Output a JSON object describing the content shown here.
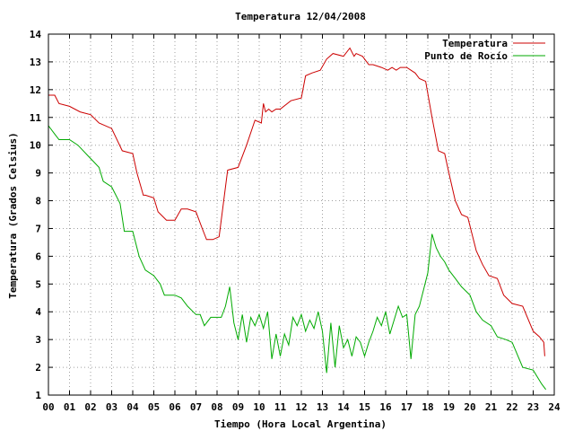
{
  "chart_data": {
    "type": "line",
    "title": "Temperatura 12/04/2008",
    "xlabel": "Tiempo (Hora Local Argentina)",
    "ylabel": "Temperatura (Grados Celsius)",
    "xlim": [
      0,
      24
    ],
    "ylim": [
      1,
      14
    ],
    "x_ticks": [
      {
        "v": 0,
        "label": "00"
      },
      {
        "v": 1,
        "label": "01"
      },
      {
        "v": 2,
        "label": "02"
      },
      {
        "v": 3,
        "label": "03"
      },
      {
        "v": 4,
        "label": "04"
      },
      {
        "v": 5,
        "label": "05"
      },
      {
        "v": 6,
        "label": "06"
      },
      {
        "v": 7,
        "label": "07"
      },
      {
        "v": 8,
        "label": "08"
      },
      {
        "v": 9,
        "label": "09"
      },
      {
        "v": 10,
        "label": "10"
      },
      {
        "v": 11,
        "label": "11"
      },
      {
        "v": 12,
        "label": "12"
      },
      {
        "v": 13,
        "label": "13"
      },
      {
        "v": 14,
        "label": "14"
      },
      {
        "v": 15,
        "label": "15"
      },
      {
        "v": 16,
        "label": "16"
      },
      {
        "v": 17,
        "label": "17"
      },
      {
        "v": 18,
        "label": "18"
      },
      {
        "v": 19,
        "label": "19"
      },
      {
        "v": 20,
        "label": "20"
      },
      {
        "v": 21,
        "label": "21"
      },
      {
        "v": 22,
        "label": "22"
      },
      {
        "v": 23,
        "label": "23"
      },
      {
        "v": 24,
        "label": "24"
      }
    ],
    "y_ticks": [
      {
        "v": 1,
        "label": "1"
      },
      {
        "v": 2,
        "label": "2"
      },
      {
        "v": 3,
        "label": "3"
      },
      {
        "v": 4,
        "label": "4"
      },
      {
        "v": 5,
        "label": "5"
      },
      {
        "v": 6,
        "label": "6"
      },
      {
        "v": 7,
        "label": "7"
      },
      {
        "v": 8,
        "label": "8"
      },
      {
        "v": 9,
        "label": "9"
      },
      {
        "v": 10,
        "label": "10"
      },
      {
        "v": 11,
        "label": "11"
      },
      {
        "v": 12,
        "label": "12"
      },
      {
        "v": 13,
        "label": "13"
      },
      {
        "v": 14,
        "label": "14"
      }
    ],
    "grid": true,
    "legend": "top-right",
    "series": [
      {
        "name": "Temperatura",
        "color": "#cc0000",
        "x": [
          0.0,
          0.3,
          0.5,
          1.0,
          1.5,
          2.0,
          2.4,
          3.0,
          3.5,
          4.0,
          4.2,
          4.5,
          4.6,
          5.0,
          5.2,
          5.6,
          6.0,
          6.3,
          6.6,
          7.0,
          7.3,
          7.5,
          7.8,
          8.1,
          8.5,
          9.0,
          9.4,
          9.8,
          10.1,
          10.2,
          10.3,
          10.45,
          10.6,
          10.8,
          11.0,
          11.5,
          12.0,
          12.2,
          12.5,
          12.9,
          13.2,
          13.5,
          14.0,
          14.3,
          14.5,
          14.6,
          14.9,
          15.2,
          15.4,
          15.8,
          16.1,
          16.3,
          16.5,
          16.7,
          17.0,
          17.4,
          17.6,
          17.9,
          18.2,
          18.5,
          18.8,
          19.0,
          19.3,
          19.6,
          19.9,
          20.3,
          20.6,
          20.9,
          21.3,
          21.6,
          22.0,
          22.5,
          23.0,
          23.3,
          23.5,
          23.55
        ],
        "values": [
          11.8,
          11.8,
          11.5,
          11.4,
          11.2,
          11.1,
          10.8,
          10.6,
          9.8,
          9.7,
          9.0,
          8.2,
          8.2,
          8.1,
          7.6,
          7.3,
          7.3,
          7.7,
          7.7,
          7.6,
          7.0,
          6.6,
          6.6,
          6.7,
          9.1,
          9.2,
          10.0,
          10.9,
          10.8,
          11.5,
          11.2,
          11.3,
          11.2,
          11.3,
          11.3,
          11.6,
          11.7,
          12.5,
          12.6,
          12.7,
          13.1,
          13.3,
          13.2,
          13.5,
          13.2,
          13.3,
          13.2,
          12.9,
          12.9,
          12.8,
          12.7,
          12.8,
          12.7,
          12.8,
          12.8,
          12.6,
          12.4,
          12.3,
          11.0,
          9.8,
          9.7,
          9.0,
          8.0,
          7.5,
          7.4,
          6.2,
          5.7,
          5.3,
          5.2,
          4.6,
          4.3,
          4.2,
          3.3,
          3.1,
          2.9,
          2.4
        ]
      },
      {
        "name": "Punto de Rocío",
        "color": "#00aa00",
        "x": [
          0.0,
          0.3,
          0.5,
          1.0,
          1.4,
          1.9,
          2.4,
          2.6,
          3.0,
          3.4,
          3.6,
          4.0,
          4.3,
          4.6,
          5.0,
          5.3,
          5.5,
          6.0,
          6.3,
          6.6,
          7.0,
          7.2,
          7.4,
          7.7,
          8.0,
          8.2,
          8.4,
          8.6,
          8.8,
          9.0,
          9.2,
          9.4,
          9.6,
          9.8,
          10.0,
          10.2,
          10.4,
          10.6,
          10.8,
          11.0,
          11.2,
          11.4,
          11.6,
          11.8,
          12.0,
          12.2,
          12.4,
          12.6,
          12.8,
          13.0,
          13.2,
          13.4,
          13.6,
          13.8,
          14.0,
          14.2,
          14.4,
          14.6,
          14.8,
          15.0,
          15.2,
          15.4,
          15.6,
          15.8,
          16.0,
          16.2,
          16.4,
          16.6,
          16.8,
          17.0,
          17.2,
          17.4,
          17.6,
          17.8,
          18.0,
          18.2,
          18.4,
          18.6,
          18.8,
          19.0,
          19.3,
          19.6,
          20.0,
          20.3,
          20.6,
          21.0,
          21.3,
          21.7,
          22.0,
          22.5,
          23.0,
          23.4,
          23.6
        ],
        "values": [
          10.7,
          10.4,
          10.2,
          10.2,
          10.0,
          9.6,
          9.2,
          8.7,
          8.5,
          7.9,
          6.9,
          6.9,
          6.0,
          5.5,
          5.3,
          5.0,
          4.6,
          4.6,
          4.5,
          4.2,
          3.9,
          3.9,
          3.5,
          3.8,
          3.8,
          3.8,
          4.2,
          4.9,
          3.6,
          3.0,
          3.9,
          2.9,
          3.8,
          3.5,
          3.9,
          3.4,
          4.0,
          2.3,
          3.2,
          2.4,
          3.2,
          2.8,
          3.8,
          3.5,
          3.9,
          3.3,
          3.7,
          3.4,
          4.0,
          3.3,
          1.8,
          3.6,
          2.0,
          3.5,
          2.7,
          3.0,
          2.4,
          3.1,
          2.9,
          2.4,
          2.9,
          3.3,
          3.8,
          3.5,
          4.0,
          3.2,
          3.7,
          4.2,
          3.8,
          3.9,
          2.3,
          3.9,
          4.2,
          4.8,
          5.4,
          6.8,
          6.3,
          6.0,
          5.8,
          5.5,
          5.2,
          4.9,
          4.6,
          4.0,
          3.7,
          3.5,
          3.1,
          3.0,
          2.9,
          2.0,
          1.9,
          1.4,
          1.2
        ]
      }
    ]
  }
}
